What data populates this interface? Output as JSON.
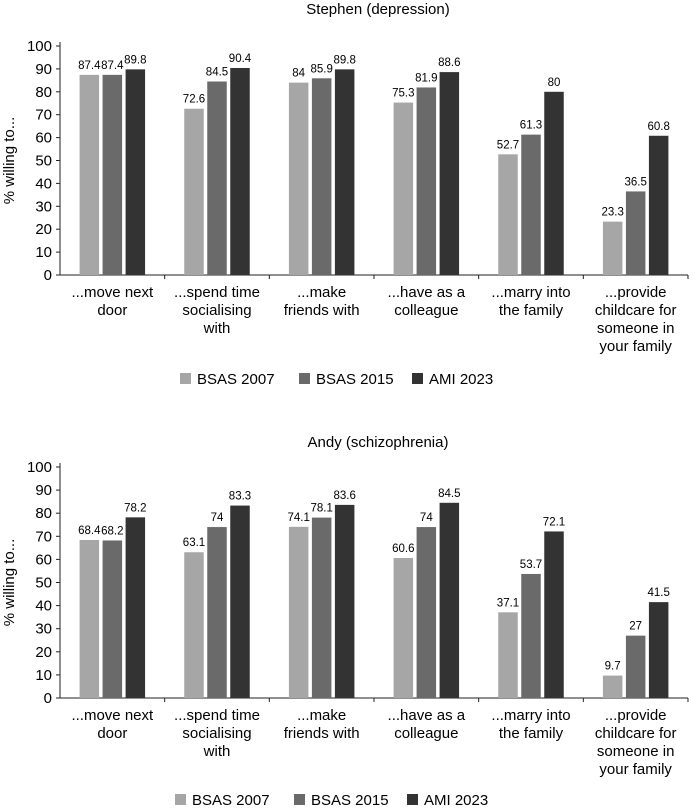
{
  "chart_data": [
    {
      "type": "bar",
      "title": "Stephen (depression)",
      "ylabel": "% willing to...",
      "xlabel": "",
      "ylim": [
        0,
        100
      ],
      "yticks": [
        0,
        10,
        20,
        30,
        40,
        50,
        60,
        70,
        80,
        90,
        100
      ],
      "categories": [
        [
          "...move next",
          "door"
        ],
        [
          "...spend time",
          "socialising",
          "with"
        ],
        [
          "...make",
          "friends with"
        ],
        [
          "...have as a",
          "colleague"
        ],
        [
          "...marry into",
          "the family"
        ],
        [
          "...provide",
          "childcare for",
          "someone in",
          "your family"
        ]
      ],
      "series": [
        {
          "name": "BSAS 2007",
          "color": "#a6a6a6",
          "values": [
            87.4,
            72.6,
            84,
            75.3,
            52.7,
            23.3
          ]
        },
        {
          "name": "BSAS 2015",
          "color": "#6a6a6a",
          "values": [
            87.4,
            84.5,
            85.9,
            81.9,
            61.3,
            36.5
          ]
        },
        {
          "name": "AMI 2023",
          "color": "#333333",
          "values": [
            89.8,
            90.4,
            89.8,
            88.6,
            80,
            60.8
          ]
        }
      ],
      "legend": "bottom"
    },
    {
      "type": "bar",
      "title": "Andy (schizophrenia)",
      "ylabel": "% willing to...",
      "xlabel": "",
      "ylim": [
        0,
        100
      ],
      "yticks": [
        0,
        10,
        20,
        30,
        40,
        50,
        60,
        70,
        80,
        90,
        100
      ],
      "categories": [
        [
          "...move next",
          "door"
        ],
        [
          "...spend time",
          "socialising",
          "with"
        ],
        [
          "...make",
          "friends with"
        ],
        [
          "...have as a",
          "colleague"
        ],
        [
          "...marry into",
          "the family"
        ],
        [
          "...provide",
          "childcare for",
          "someone in",
          "your family"
        ]
      ],
      "series": [
        {
          "name": "BSAS 2007",
          "color": "#a6a6a6",
          "values": [
            68.4,
            63.1,
            74.1,
            60.6,
            37.1,
            9.7
          ]
        },
        {
          "name": "BSAS 2015",
          "color": "#6a6a6a",
          "values": [
            68.2,
            74,
            78.1,
            74,
            53.7,
            27
          ]
        },
        {
          "name": "AMI 2023",
          "color": "#333333",
          "values": [
            78.2,
            83.3,
            83.6,
            84.5,
            72.1,
            41.5
          ]
        }
      ],
      "legend": "bottom"
    }
  ]
}
